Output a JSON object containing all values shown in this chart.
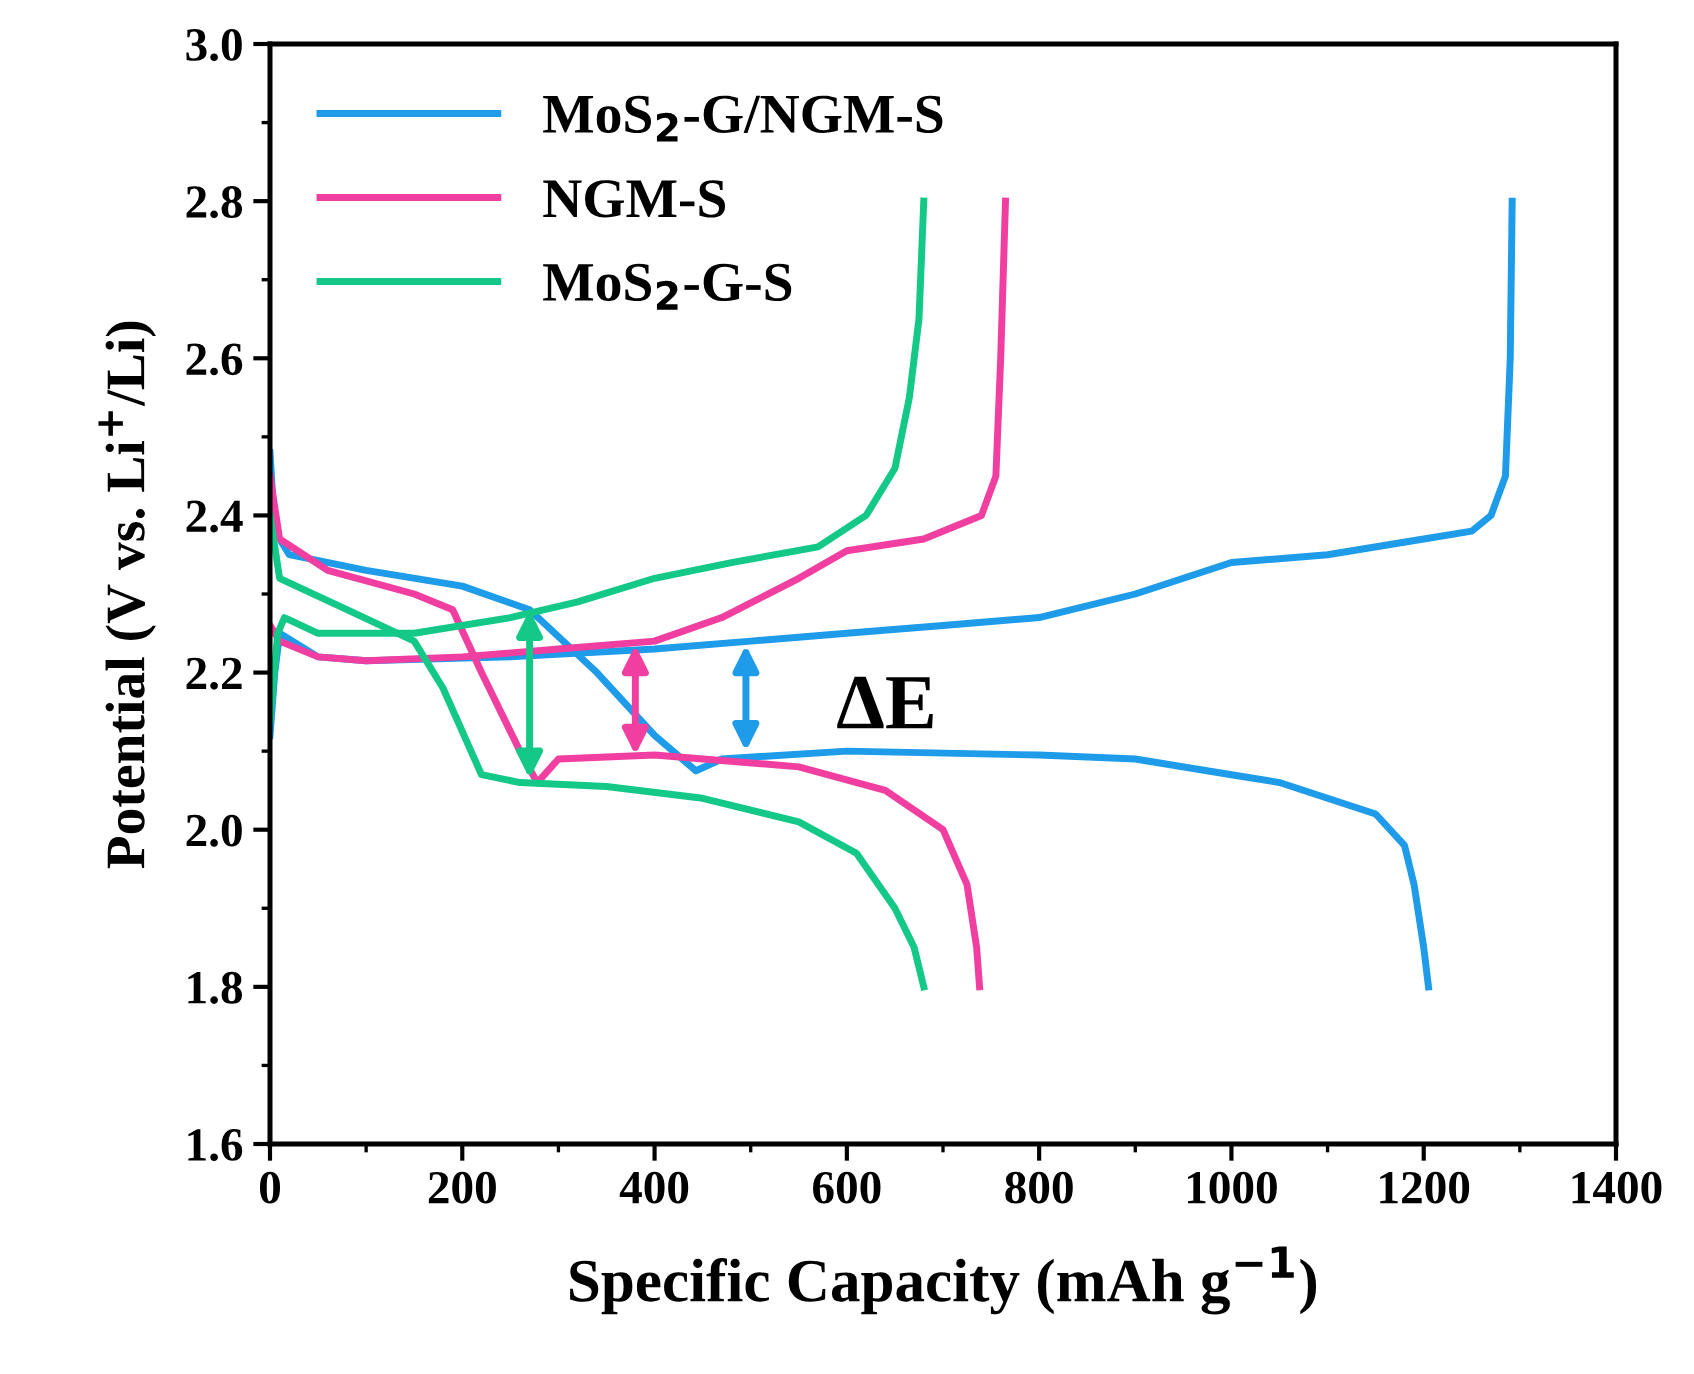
{
  "chart_data": {
    "type": "line",
    "xlabel": "Specific Capacity (mAh g$^{−1}$)",
    "ylabel": "Potential (V vs. Li$^{+}$/Li)",
    "xlim": [
      0,
      1400
    ],
    "xticks": [
      0,
      200,
      400,
      600,
      800,
      1000,
      1200,
      1400
    ],
    "ylim": [
      1.6,
      3.0
    ],
    "yticks": [
      {
        "value": 1.6,
        "label": "1.6"
      },
      {
        "value": 1.8,
        "label": "1.8"
      },
      {
        "value": 2.0,
        "label": "2.0"
      },
      {
        "value": 2.2,
        "label": "2.2"
      },
      {
        "value": 2.4,
        "label": "2.4"
      },
      {
        "value": 2.6,
        "label": "2.6"
      },
      {
        "value": 2.8,
        "label": "2.8"
      },
      {
        "value": 3.0,
        "label": "3.0"
      }
    ],
    "grid": false,
    "legend": "top left",
    "line_style": "solid",
    "marker": "none",
    "annotations": [
      "ΔE"
    ],
    "series": [
      {
        "name": "MoS$_{2}$-G/NGM-S",
        "color": "#1e9be9",
        "x": [
          0,
          5,
          20,
          100,
          200,
          270,
          340,
          400,
          443,
          470,
          600,
          800,
          900,
          1000,
          1050,
          1100,
          1150,
          1180,
          1190,
          1200,
          1205
        ],
        "values": [
          2.48,
          2.38,
          2.35,
          2.33,
          2.31,
          2.28,
          2.2,
          2.12,
          2.075,
          2.09,
          2.1,
          2.095,
          2.09,
          2.07,
          2.06,
          2.04,
          2.02,
          1.98,
          1.93,
          1.85,
          1.8
        ]
      },
      {
        "color": "#1e9be9",
        "x": [
          0,
          5,
          10,
          50,
          100,
          250,
          400,
          500,
          600,
          700,
          800,
          900,
          1000,
          1100,
          1200,
          1250,
          1270,
          1285,
          1290,
          1292
        ],
        "values": [
          2.12,
          2.2,
          2.25,
          2.22,
          2.215,
          2.22,
          2.23,
          2.24,
          2.25,
          2.26,
          2.27,
          2.3,
          2.34,
          2.35,
          2.37,
          2.38,
          2.4,
          2.45,
          2.6,
          2.8
        ]
      },
      {
        "name": "NGM-S",
        "color": "#f03fa0",
        "x": [
          0,
          10,
          60,
          150,
          190,
          220,
          260,
          278,
          300,
          400,
          550,
          640,
          700,
          725,
          735,
          738
        ],
        "values": [
          2.45,
          2.37,
          2.33,
          2.3,
          2.28,
          2.2,
          2.1,
          2.06,
          2.09,
          2.095,
          2.08,
          2.05,
          2.0,
          1.93,
          1.85,
          1.8
        ],
        "marker": "none"
      },
      {
        "color": "#f03fa0",
        "x": [
          0,
          10,
          50,
          100,
          200,
          300,
          400,
          470,
          550,
          600,
          680,
          740,
          755,
          760,
          765
        ],
        "values": [
          2.26,
          2.24,
          2.22,
          2.215,
          2.22,
          2.23,
          2.24,
          2.27,
          2.32,
          2.355,
          2.37,
          2.4,
          2.45,
          2.6,
          2.8
        ]
      },
      {
        "name": "MoS$_{2}$-G-S",
        "color": "#14c987",
        "x": [
          0,
          10,
          80,
          150,
          180,
          220,
          260,
          350,
          450,
          550,
          610,
          650,
          670,
          680
        ],
        "values": [
          2.4,
          2.32,
          2.28,
          2.24,
          2.18,
          2.07,
          2.06,
          2.055,
          2.04,
          2.01,
          1.97,
          1.9,
          1.85,
          1.8
        ]
      },
      {
        "color": "#14c987",
        "x": [
          0,
          8,
          15,
          50,
          150,
          250,
          320,
          400,
          480,
          570,
          620,
          650,
          665,
          675,
          680
        ],
        "values": [
          2.14,
          2.25,
          2.27,
          2.25,
          2.25,
          2.27,
          2.29,
          2.32,
          2.34,
          2.36,
          2.4,
          2.46,
          2.55,
          2.65,
          2.8
        ]
      }
    ]
  }
}
